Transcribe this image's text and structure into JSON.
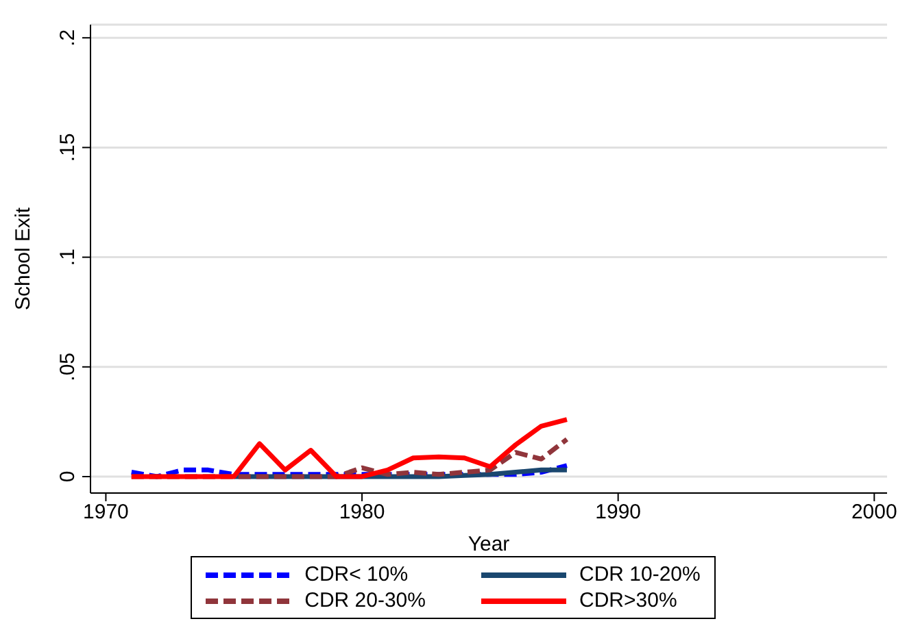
{
  "chart_data": {
    "type": "line",
    "xlabel": "Year",
    "ylabel": "School Exit",
    "x": [
      1971,
      1972,
      1973,
      1974,
      1975,
      1976,
      1977,
      1978,
      1979,
      1980,
      1981,
      1982,
      1983,
      1984,
      1985,
      1986,
      1987,
      1988
    ],
    "series": [
      {
        "name": "CDR< 10%",
        "color": "#0000ff",
        "line_style": "dashed",
        "values": [
          0.002,
          0,
          0.003,
          0.003,
          0.001,
          0.001,
          0.001,
          0.001,
          0.001,
          0.001,
          0.001,
          0.001,
          0.001,
          0.001,
          0.001,
          0.001,
          0.002,
          0.005
        ]
      },
      {
        "name": "CDR 10-20%",
        "color": "#1a476f",
        "line_style": "solid",
        "values": [
          null,
          null,
          null,
          null,
          0,
          0,
          0,
          0,
          0,
          0,
          0,
          0,
          0,
          0.0005,
          0.001,
          0.002,
          0.003,
          0.003
        ]
      },
      {
        "name": "CDR 20-30%",
        "color": "#90353b",
        "line_style": "dashed",
        "values": [
          0,
          0,
          0,
          0,
          0,
          0,
          0,
          0,
          0,
          0.004,
          0.001,
          0.002,
          0.001,
          0.002,
          0.003,
          0.011,
          0.008,
          0.017
        ]
      },
      {
        "name": "CDR>30%",
        "color": "#ff0000",
        "line_style": "solid",
        "values": [
          0,
          0,
          0,
          0,
          0,
          0.015,
          0.003,
          0.012,
          0,
          0,
          0.003,
          0.0085,
          0.009,
          0.0085,
          0.0045,
          0.0145,
          0.023,
          0.026
        ]
      }
    ],
    "xlim": [
      1969.4,
      2000.5
    ],
    "xticks": [
      1970,
      1980,
      1990,
      2000
    ],
    "ylim": [
      -0.0075,
      0.206
    ],
    "yticks": [
      {
        "value": 0,
        "label": "0"
      },
      {
        "value": 0.05,
        "label": ".05"
      },
      {
        "value": 0.1,
        "label": ".1"
      },
      {
        "value": 0.15,
        "label": ".15"
      },
      {
        "value": 0.2,
        "label": ".2"
      }
    ],
    "grid": "y",
    "legend": "bottom",
    "marker": "none"
  }
}
